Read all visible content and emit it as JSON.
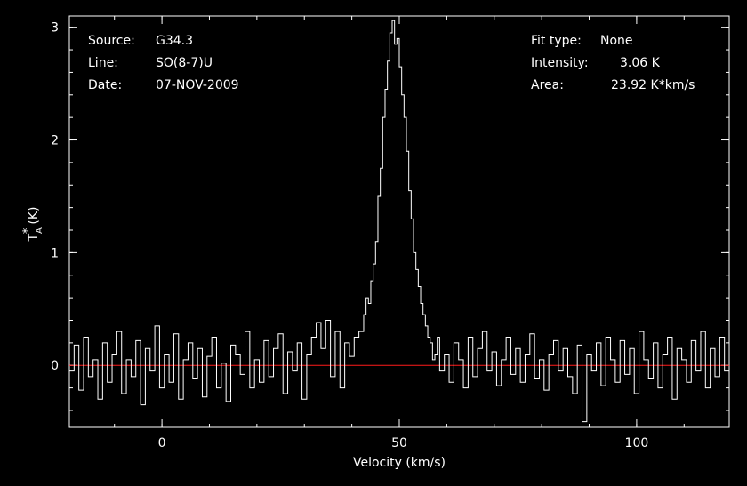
{
  "info": {
    "source_label": "Source:",
    "source_value": "G34.3",
    "line_label": "Line:",
    "line_value": "SO(8-7)U",
    "date_label": "Date:",
    "date_value": "07-NOV-2009",
    "fit_label": "Fit type:",
    "fit_value": "None",
    "intensity_label": "Intensity:",
    "intensity_value": "3.06 K",
    "area_label": "Area:",
    "area_value": "23.92 K*km/s"
  },
  "chart_data": {
    "type": "line",
    "xlabel": "Velocity (km/s)",
    "ylabel": "T_A^* (K)",
    "ylabel_parts": {
      "base": "T",
      "sub": "A",
      "sup": "*",
      "unit": "(K)"
    },
    "xlim": [
      -19.5,
      119.5
    ],
    "ylim": [
      -0.55,
      3.1
    ],
    "x_ticks": [
      0,
      50,
      100
    ],
    "x_tick_labels": [
      "0",
      "50",
      "100"
    ],
    "y_ticks": [
      0,
      1,
      2,
      3
    ],
    "y_tick_labels": [
      "0",
      "1",
      "2",
      "3"
    ],
    "x_minor_step": 10,
    "y_minor_step": 0.2,
    "baseline": 0,
    "grid": false,
    "colors": {
      "spectrum": "#ffffff",
      "baseline": "#ff1a1a",
      "axes": "#ffffff",
      "background": "#000000"
    },
    "series": [
      {
        "x": [
          -19.5,
          -18.5,
          -17.5,
          -16.5,
          -15.5,
          -14.5,
          -13.5,
          -12.5,
          -11.5,
          -10.5,
          -9.5,
          -8.5,
          -7.5,
          -6.5,
          -5.5,
          -4.5,
          -3.5,
          -2.5,
          -1.5,
          -0.5,
          0.5,
          1.5,
          2.5,
          3.5,
          4.5,
          5.5,
          6.5,
          7.5,
          8.5,
          9.5,
          10.5,
          11.5,
          12.5,
          13.5,
          14.5,
          15.5,
          16.5,
          17.5,
          18.5,
          19.5,
          20.5,
          21.5,
          22.5,
          23.5,
          24.5,
          25.5,
          26.5,
          27.5,
          28.5,
          29.5,
          30.5,
          31.5,
          32.5,
          33.5,
          34.5,
          35.5,
          36.5,
          37.5,
          38.5,
          39.5,
          40.5,
          41.5,
          42.5,
          43.0,
          43.5,
          44.0,
          44.5,
          45.0,
          45.5,
          46.0,
          46.5,
          47.0,
          47.5,
          48.0,
          48.5,
          49.0,
          49.5,
          50.0,
          50.5,
          51.0,
          51.5,
          52.0,
          52.5,
          53.0,
          53.5,
          54.0,
          54.5,
          55.0,
          55.5,
          56.0,
          56.5,
          57.0,
          57.5,
          58.0,
          58.5,
          59.5,
          60.5,
          61.5,
          62.5,
          63.5,
          64.5,
          65.5,
          66.5,
          67.5,
          68.5,
          69.5,
          70.5,
          71.5,
          72.5,
          73.5,
          74.5,
          75.5,
          76.5,
          77.5,
          78.5,
          79.5,
          80.5,
          81.5,
          82.5,
          83.5,
          84.5,
          85.5,
          86.5,
          87.5,
          88.5,
          89.5,
          90.5,
          91.5,
          92.5,
          93.5,
          94.5,
          95.5,
          96.5,
          97.5,
          98.5,
          99.5,
          100.5,
          101.5,
          102.5,
          103.5,
          104.5,
          105.5,
          106.5,
          107.5,
          108.5,
          109.5,
          110.5,
          111.5,
          112.5,
          113.5,
          114.5,
          115.5,
          116.5,
          117.5,
          118.5,
          119.5
        ],
        "y": [
          -0.05,
          0.18,
          -0.22,
          0.25,
          -0.1,
          0.05,
          -0.3,
          0.2,
          -0.15,
          0.1,
          0.3,
          -0.25,
          0.05,
          -0.1,
          0.22,
          -0.35,
          0.15,
          -0.05,
          0.35,
          -0.2,
          0.1,
          -0.15,
          0.28,
          -0.3,
          0.05,
          0.2,
          -0.12,
          0.15,
          -0.28,
          0.08,
          0.25,
          -0.2,
          0.02,
          -0.32,
          0.18,
          0.1,
          -0.08,
          0.3,
          -0.2,
          0.05,
          -0.15,
          0.22,
          -0.1,
          0.15,
          0.28,
          -0.25,
          0.12,
          -0.05,
          0.2,
          -0.3,
          0.1,
          0.25,
          0.38,
          0.15,
          0.4,
          -0.1,
          0.3,
          -0.2,
          0.2,
          0.08,
          0.25,
          0.3,
          0.45,
          0.6,
          0.55,
          0.75,
          0.9,
          1.1,
          1.5,
          1.75,
          2.2,
          2.45,
          2.7,
          2.95,
          3.06,
          2.85,
          2.9,
          2.65,
          2.4,
          2.2,
          1.9,
          1.55,
          1.3,
          1.0,
          0.85,
          0.7,
          0.55,
          0.45,
          0.35,
          0.25,
          0.2,
          0.05,
          0.1,
          0.25,
          -0.05,
          0.1,
          -0.15,
          0.2,
          0.05,
          -0.2,
          0.25,
          -0.1,
          0.15,
          0.3,
          -0.05,
          0.12,
          -0.18,
          0.05,
          0.25,
          -0.08,
          0.15,
          -0.15,
          0.1,
          0.28,
          -0.12,
          0.05,
          -0.22,
          0.1,
          0.22,
          -0.05,
          0.15,
          -0.1,
          -0.25,
          0.18,
          -0.5,
          0.1,
          -0.05,
          0.2,
          -0.18,
          0.25,
          0.05,
          -0.15,
          0.22,
          -0.08,
          0.15,
          -0.25,
          0.3,
          0.05,
          -0.12,
          0.2,
          -0.2,
          0.1,
          0.25,
          -0.3,
          0.15,
          0.05,
          -0.15,
          0.22,
          -0.05,
          0.3,
          -0.2,
          0.15,
          -0.1,
          0.25,
          -0.05,
          -0.25
        ]
      }
    ]
  }
}
